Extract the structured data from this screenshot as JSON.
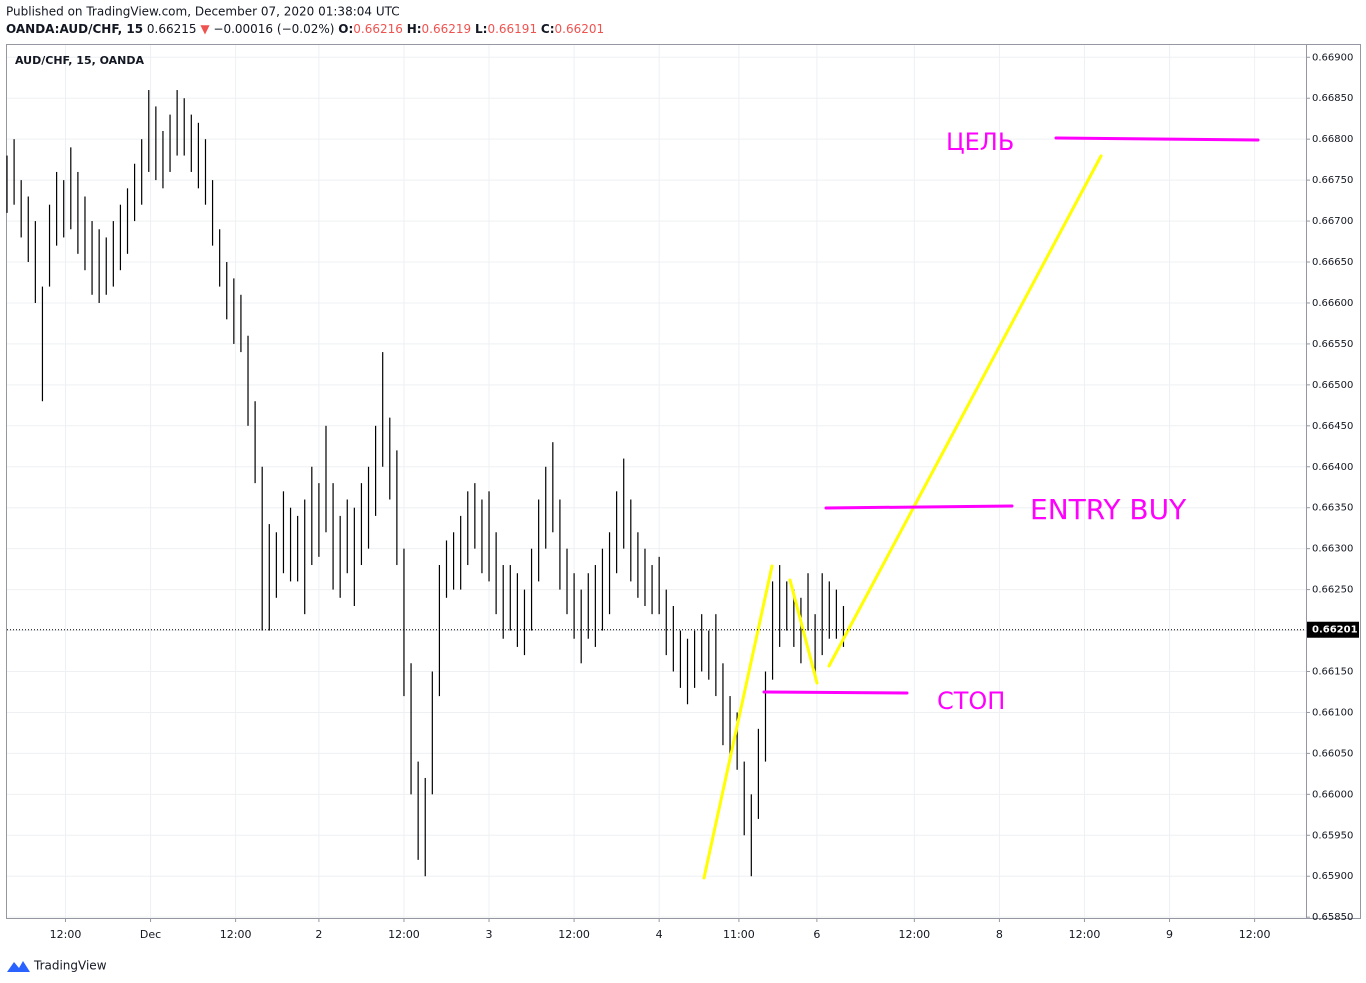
{
  "header": {
    "published": "Published on TradingView.com, December 07, 2020 01:38:04 UTC",
    "symbol": "OANDA:AUD/CHF, 15",
    "price": "0.66215",
    "change_arrow": "▼",
    "change": "−0.00016 (−0.02%)",
    "ohlc": [
      {
        "label": "O:",
        "value": "0.66216"
      },
      {
        "label": "H:",
        "value": "0.66219"
      },
      {
        "label": "L:",
        "value": "0.66191"
      },
      {
        "label": "C:",
        "value": "0.66201"
      }
    ]
  },
  "footer": {
    "brand": "TradingView"
  },
  "chart_data": {
    "type": "ohlc",
    "title": "AUD/CHF, 15, OANDA",
    "color": "#000000",
    "x": [
      0,
      4,
      8,
      12,
      16,
      20,
      24,
      28,
      32,
      36,
      40,
      44,
      48,
      52,
      56,
      60,
      64,
      68,
      72,
      76,
      80,
      84,
      88,
      92,
      96,
      100,
      104,
      108,
      112,
      116,
      120,
      124,
      128,
      132,
      136,
      140,
      144,
      148,
      152,
      156,
      160,
      164,
      168,
      172,
      176,
      180,
      184,
      188,
      192,
      196,
      200,
      204,
      208,
      212,
      216,
      220,
      224,
      228,
      232,
      236,
      240,
      244,
      248,
      252,
      256,
      260,
      264,
      268,
      272,
      276,
      280,
      284,
      288,
      292,
      296,
      300,
      304,
      308,
      312,
      316,
      320,
      324,
      328,
      332,
      336,
      340,
      344,
      348,
      352,
      356,
      360,
      364,
      368,
      372,
      376,
      380,
      384,
      388,
      392,
      396,
      400,
      404,
      408,
      412,
      416,
      420,
      424,
      428,
      432,
      436,
      440,
      444,
      448,
      452,
      456,
      460,
      464,
      468,
      472
    ],
    "high": [
      0.6678,
      0.668,
      0.6675,
      0.6673,
      0.667,
      0.6662,
      0.6672,
      0.6676,
      0.6675,
      0.6679,
      0.6676,
      0.6673,
      0.667,
      0.6669,
      0.6668,
      0.667,
      0.6672,
      0.6674,
      0.6677,
      0.668,
      0.6686,
      0.6684,
      0.6681,
      0.6683,
      0.6686,
      0.6685,
      0.6683,
      0.6682,
      0.668,
      0.6675,
      0.6669,
      0.6665,
      0.6663,
      0.6661,
      0.6656,
      0.6648,
      0.664,
      0.6633,
      0.6632,
      0.6637,
      0.6635,
      0.6634,
      0.6636,
      0.664,
      0.6638,
      0.6645,
      0.6638,
      0.6634,
      0.6636,
      0.6635,
      0.6638,
      0.664,
      0.6645,
      0.6654,
      0.6646,
      0.6642,
      0.663,
      0.6616,
      0.6604,
      0.6602,
      0.6615,
      0.6628,
      0.6631,
      0.6632,
      0.6634,
      0.6637,
      0.6638,
      0.6636,
      0.6637,
      0.6632,
      0.6628,
      0.6628,
      0.6627,
      0.6625,
      0.663,
      0.6636,
      0.664,
      0.6643,
      0.6636,
      0.663,
      0.6627,
      0.6625,
      0.6627,
      0.6628,
      0.663,
      0.6632,
      0.6637,
      0.6641,
      0.6636,
      0.6632,
      0.663,
      0.6628,
      0.6629,
      0.6625,
      0.6623,
      0.662,
      0.6619,
      0.662,
      0.6622,
      0.662,
      0.6622,
      0.6616,
      0.6612,
      0.661,
      0.6604,
      0.66,
      0.6608,
      0.6615,
      0.6626,
      0.6628,
      0.6626,
      0.6625,
      0.6624,
      0.6627,
      0.6622,
      0.6627,
      0.6626,
      0.6625,
      0.6623
    ],
    "low": [
      0.6671,
      0.6672,
      0.6668,
      0.6665,
      0.666,
      0.6648,
      0.6662,
      0.6667,
      0.6668,
      0.6669,
      0.6666,
      0.6664,
      0.6661,
      0.666,
      0.6661,
      0.6662,
      0.6664,
      0.6666,
      0.667,
      0.6672,
      0.6676,
      0.6675,
      0.6674,
      0.6676,
      0.6678,
      0.6678,
      0.6676,
      0.6674,
      0.6672,
      0.6667,
      0.6662,
      0.6658,
      0.6655,
      0.6654,
      0.6645,
      0.6638,
      0.662,
      0.662,
      0.6624,
      0.6627,
      0.6626,
      0.6626,
      0.6622,
      0.6628,
      0.6629,
      0.6632,
      0.6625,
      0.6624,
      0.6627,
      0.6623,
      0.6628,
      0.663,
      0.6634,
      0.664,
      0.6636,
      0.6628,
      0.6612,
      0.66,
      0.6592,
      0.659,
      0.66,
      0.6612,
      0.6624,
      0.6625,
      0.6625,
      0.6628,
      0.663,
      0.6627,
      0.6626,
      0.6622,
      0.6619,
      0.662,
      0.6618,
      0.6617,
      0.662,
      0.6626,
      0.663,
      0.6632,
      0.6625,
      0.6622,
      0.6619,
      0.6616,
      0.6619,
      0.6618,
      0.662,
      0.6622,
      0.6627,
      0.663,
      0.6626,
      0.6624,
      0.6623,
      0.6622,
      0.6622,
      0.6617,
      0.6615,
      0.6613,
      0.6611,
      0.6613,
      0.6615,
      0.6614,
      0.6612,
      0.6606,
      0.6604,
      0.6603,
      0.6595,
      0.659,
      0.6597,
      0.6604,
      0.6614,
      0.6618,
      0.662,
      0.6618,
      0.6616,
      0.662,
      0.6614,
      0.6617,
      0.6619,
      0.6619,
      0.6618
    ],
    "xlim": [
      0,
      733
    ],
    "xticks": [
      {
        "value": 33,
        "label": "12:00"
      },
      {
        "value": 81,
        "label": "Dec"
      },
      {
        "value": 129,
        "label": "12:00"
      },
      {
        "value": 176,
        "label": "2"
      },
      {
        "value": 224,
        "label": "12:00"
      },
      {
        "value": 272,
        "label": "3"
      },
      {
        "value": 320,
        "label": "12:00"
      },
      {
        "value": 368,
        "label": "4"
      },
      {
        "value": 413,
        "label": "11:00"
      },
      {
        "value": 457,
        "label": "6"
      },
      {
        "value": 512,
        "label": "12:00"
      },
      {
        "value": 560,
        "label": "8"
      },
      {
        "value": 608,
        "label": "12:00"
      },
      {
        "value": 656,
        "label": "9"
      },
      {
        "value": 704,
        "label": "12:00"
      }
    ],
    "ylim": [
      0.65849,
      0.66915
    ],
    "yticks": [
      {
        "value": 0.6585,
        "label": "0.65850"
      },
      {
        "value": 0.659,
        "label": "0.65900"
      },
      {
        "value": 0.6595,
        "label": "0.65950"
      },
      {
        "value": 0.66,
        "label": "0.66000"
      },
      {
        "value": 0.6605,
        "label": "0.66050"
      },
      {
        "value": 0.661,
        "label": "0.66100"
      },
      {
        "value": 0.6615,
        "label": "0.66150"
      },
      {
        "value": 0.662,
        "label": "0.66200"
      },
      {
        "value": 0.6625,
        "label": "0.66250"
      },
      {
        "value": 0.663,
        "label": "0.66300"
      },
      {
        "value": 0.6635,
        "label": "0.66350"
      },
      {
        "value": 0.664,
        "label": "0.66400"
      },
      {
        "value": 0.6645,
        "label": "0.66450"
      },
      {
        "value": 0.665,
        "label": "0.66500"
      },
      {
        "value": 0.6655,
        "label": "0.66550"
      },
      {
        "value": 0.666,
        "label": "0.66600"
      },
      {
        "value": 0.6665,
        "label": "0.66650"
      },
      {
        "value": 0.667,
        "label": "0.66700"
      },
      {
        "value": 0.6675,
        "label": "0.66750"
      },
      {
        "value": 0.668,
        "label": "0.66800"
      },
      {
        "value": 0.6685,
        "label": "0.66850"
      },
      {
        "value": 0.669,
        "label": "0.66900"
      }
    ],
    "last_price": {
      "value": 0.66201,
      "label": "0.66201"
    },
    "grid": true,
    "annotations": {
      "target": "ЦЕЛЬ",
      "entry": "ENTRY BUY",
      "stop": "СТОП"
    }
  }
}
